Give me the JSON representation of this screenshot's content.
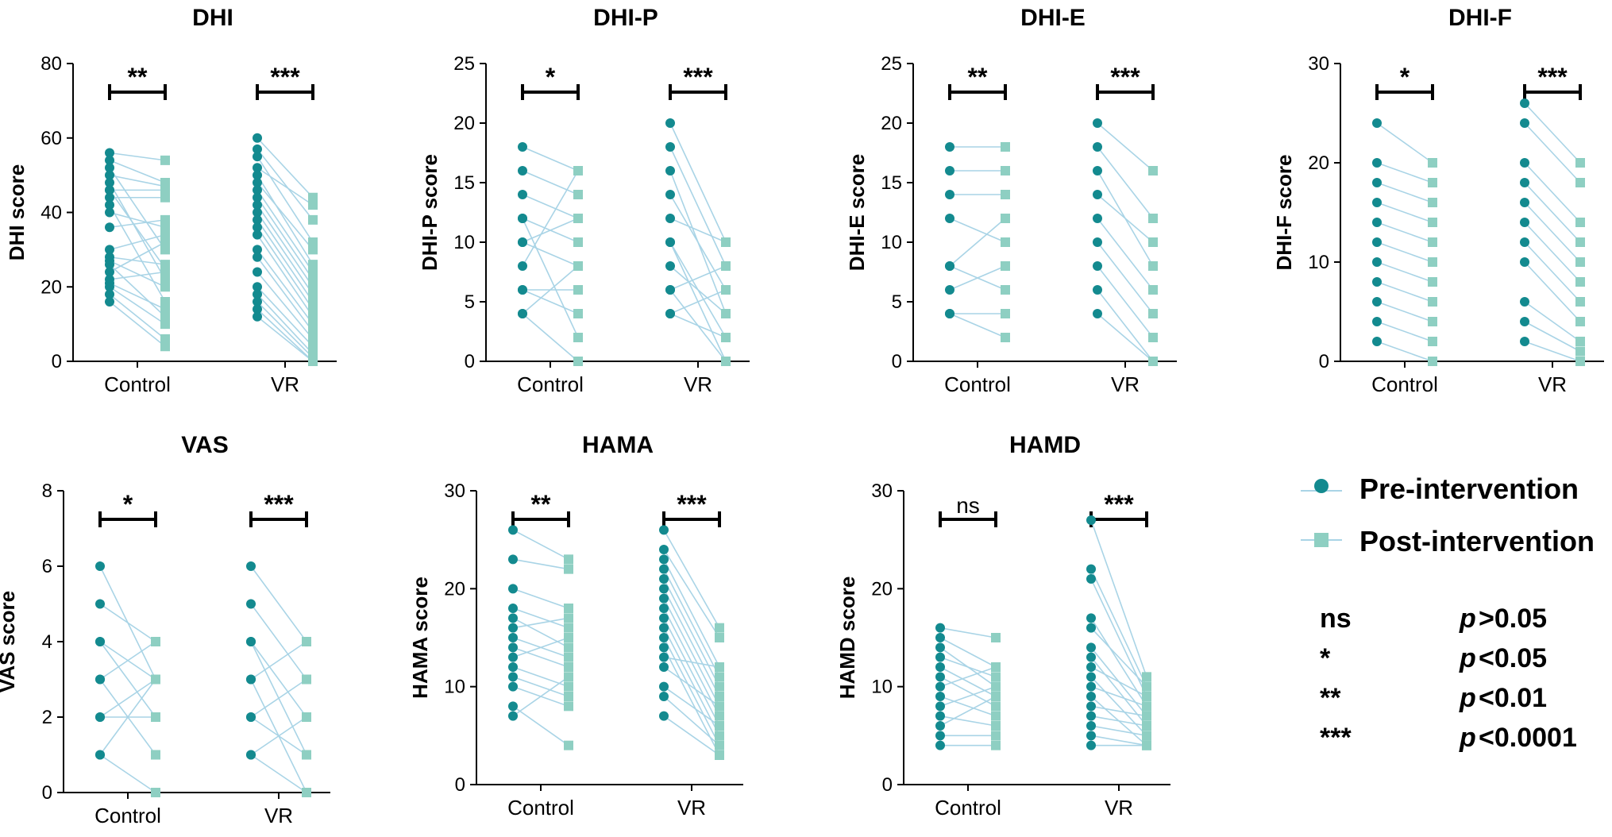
{
  "colors": {
    "pre": "#138a8f",
    "post": "#8ecfc2",
    "line": "#a9d4e6",
    "axis": "#000000"
  },
  "chart_data": [
    {
      "type": "paired-dot",
      "title": "DHI",
      "ylabel": "DHI score",
      "ylim": [
        0,
        80
      ],
      "yticks": [
        "0",
        "20",
        "40",
        "60",
        "80"
      ],
      "ytick_values": [
        0,
        20,
        40,
        60,
        80
      ],
      "categories": [
        "Control",
        "VR"
      ],
      "significance": [
        "**",
        "***"
      ],
      "series": [
        {
          "name": "Control",
          "pre": [
            56,
            54,
            52,
            50,
            48,
            46,
            46,
            44,
            42,
            40,
            36,
            30,
            28,
            27,
            26,
            24,
            22,
            21,
            20,
            18,
            16
          ],
          "post": [
            54,
            48,
            30,
            47,
            22,
            46,
            25,
            44,
            16,
            36,
            38,
            34,
            26,
            20,
            12,
            32,
            24,
            14,
            10,
            6,
            4
          ]
        },
        {
          "name": "VR",
          "pre": [
            60,
            57,
            55,
            52,
            50,
            48,
            46,
            44,
            42,
            40,
            38,
            36,
            34,
            30,
            28,
            24,
            20,
            18,
            16,
            14,
            12
          ],
          "post": [
            44,
            38,
            32,
            42,
            26,
            30,
            24,
            22,
            20,
            18,
            16,
            14,
            12,
            10,
            8,
            6,
            4,
            2,
            1,
            0,
            0
          ]
        }
      ]
    },
    {
      "type": "paired-dot",
      "title": "DHI-P",
      "ylabel": "DHI-P score",
      "ylim": [
        0,
        25
      ],
      "yticks": [
        "0",
        "5",
        "10",
        "15",
        "20",
        "25"
      ],
      "ytick_values": [
        0,
        5,
        10,
        15,
        20,
        25
      ],
      "categories": [
        "Control",
        "VR"
      ],
      "significance": [
        "*",
        "***"
      ],
      "series": [
        {
          "name": "Control",
          "pre": [
            18,
            16,
            14,
            12,
            12,
            10,
            10,
            8,
            6,
            6,
            4,
            4
          ],
          "post": [
            16,
            14,
            12,
            10,
            2,
            12,
            8,
            16,
            6,
            4,
            0,
            8
          ]
        },
        {
          "name": "VR",
          "pre": [
            20,
            18,
            16,
            14,
            12,
            10,
            10,
            8,
            6,
            6,
            4,
            4
          ],
          "post": [
            10,
            8,
            4,
            6,
            10,
            2,
            0,
            4,
            8,
            0,
            2,
            6
          ]
        }
      ]
    },
    {
      "type": "paired-dot",
      "title": "DHI-E",
      "ylabel": "DHI-E score",
      "ylim": [
        0,
        25
      ],
      "yticks": [
        "0",
        "5",
        "10",
        "15",
        "20",
        "25"
      ],
      "ytick_values": [
        0,
        5,
        10,
        15,
        20,
        25
      ],
      "categories": [
        "Control",
        "VR"
      ],
      "significance": [
        "**",
        "***"
      ],
      "series": [
        {
          "name": "Control",
          "pre": [
            18,
            16,
            14,
            12,
            8,
            8,
            6,
            4,
            4
          ],
          "post": [
            18,
            16,
            14,
            10,
            12,
            6,
            8,
            4,
            2
          ]
        },
        {
          "name": "VR",
          "pre": [
            20,
            18,
            16,
            14,
            12,
            10,
            8,
            6,
            4
          ],
          "post": [
            16,
            12,
            8,
            10,
            6,
            4,
            2,
            0,
            0
          ]
        }
      ]
    },
    {
      "type": "paired-dot",
      "title": "DHI-F",
      "ylabel": "DHI-F score",
      "ylim": [
        0,
        30
      ],
      "yticks": [
        "0",
        "10",
        "20",
        "30"
      ],
      "ytick_values": [
        0,
        10,
        20,
        30
      ],
      "categories": [
        "Control",
        "VR"
      ],
      "significance": [
        "*",
        "***"
      ],
      "series": [
        {
          "name": "Control",
          "pre": [
            24,
            20,
            18,
            16,
            14,
            12,
            10,
            8,
            6,
            4,
            2
          ],
          "post": [
            20,
            18,
            16,
            14,
            12,
            10,
            8,
            6,
            4,
            2,
            0
          ]
        },
        {
          "name": "VR",
          "pre": [
            26,
            24,
            20,
            18,
            16,
            14,
            12,
            10,
            6,
            4,
            2
          ],
          "post": [
            20,
            18,
            14,
            12,
            10,
            8,
            6,
            4,
            2,
            1,
            0
          ]
        }
      ]
    },
    {
      "type": "paired-dot",
      "title": "VAS",
      "ylabel": "VAS score",
      "ylim": [
        0,
        8
      ],
      "yticks": [
        "0",
        "2",
        "4",
        "6",
        "8"
      ],
      "ytick_values": [
        0,
        2,
        4,
        6,
        8
      ],
      "categories": [
        "Control",
        "VR"
      ],
      "significance": [
        "*",
        "***"
      ],
      "series": [
        {
          "name": "Control",
          "pre": [
            6,
            5,
            4,
            4,
            3,
            3,
            2,
            2,
            1,
            1
          ],
          "post": [
            3,
            4,
            2,
            3,
            1,
            4,
            3,
            2,
            0,
            3
          ]
        },
        {
          "name": "VR",
          "pre": [
            6,
            5,
            4,
            4,
            3,
            3,
            2,
            2,
            1,
            1
          ],
          "post": [
            4,
            3,
            2,
            1,
            0,
            4,
            1,
            3,
            0,
            2
          ]
        }
      ]
    },
    {
      "type": "paired-dot",
      "title": "HAMA",
      "ylabel": "HAMA score",
      "ylim": [
        0,
        30
      ],
      "yticks": [
        "0",
        "10",
        "20",
        "30"
      ],
      "ytick_values": [
        0,
        10,
        20,
        30
      ],
      "categories": [
        "Control",
        "VR"
      ],
      "significance": [
        "**",
        "***"
      ],
      "series": [
        {
          "name": "Control",
          "pre": [
            26,
            23,
            20,
            18,
            17,
            16,
            15,
            14,
            13,
            12,
            11,
            10,
            8,
            7
          ],
          "post": [
            23,
            22,
            18,
            16,
            14,
            17,
            13,
            12,
            15,
            10,
            9,
            8,
            4,
            11
          ]
        },
        {
          "name": "VR",
          "pre": [
            26,
            24,
            23,
            22,
            21,
            20,
            19,
            18,
            17,
            16,
            15,
            14,
            13,
            12,
            10,
            9,
            7
          ],
          "post": [
            16,
            15,
            12,
            11,
            10,
            9,
            8,
            7,
            6,
            5,
            4,
            3,
            12,
            8,
            6,
            4,
            3
          ]
        }
      ]
    },
    {
      "type": "paired-dot",
      "title": "HAMD",
      "ylabel": "HAMD score",
      "ylim": [
        0,
        30
      ],
      "yticks": [
        "0",
        "10",
        "20",
        "30"
      ],
      "ytick_values": [
        0,
        10,
        20,
        30
      ],
      "categories": [
        "Control",
        "VR"
      ],
      "significance": [
        "ns",
        "***"
      ],
      "series": [
        {
          "name": "Control",
          "pre": [
            16,
            15,
            14,
            13,
            12,
            11,
            10,
            9,
            8,
            7,
            6,
            5,
            4
          ],
          "post": [
            15,
            12,
            10,
            11,
            9,
            8,
            12,
            7,
            10,
            6,
            9,
            5,
            4
          ]
        },
        {
          "name": "VR",
          "pre": [
            27,
            22,
            21,
            17,
            16,
            14,
            13,
            12,
            11,
            10,
            9,
            8,
            7,
            6,
            5,
            4
          ],
          "post": [
            11,
            10,
            9,
            8,
            10,
            7,
            6,
            9,
            5,
            8,
            4,
            7,
            6,
            5,
            4,
            4
          ]
        }
      ]
    }
  ],
  "legend": {
    "pre_label": "Pre-intervention",
    "post_label": "Post-intervention"
  },
  "significance_key": [
    {
      "symbol": "ns",
      "p": "p",
      "value": ">0.05"
    },
    {
      "symbol": "*",
      "p": "p",
      "value": "<0.05"
    },
    {
      "symbol": "**",
      "p": "p",
      "value": "<0.01"
    },
    {
      "symbol": "***",
      "p": "p",
      "value": "<0.0001"
    }
  ]
}
